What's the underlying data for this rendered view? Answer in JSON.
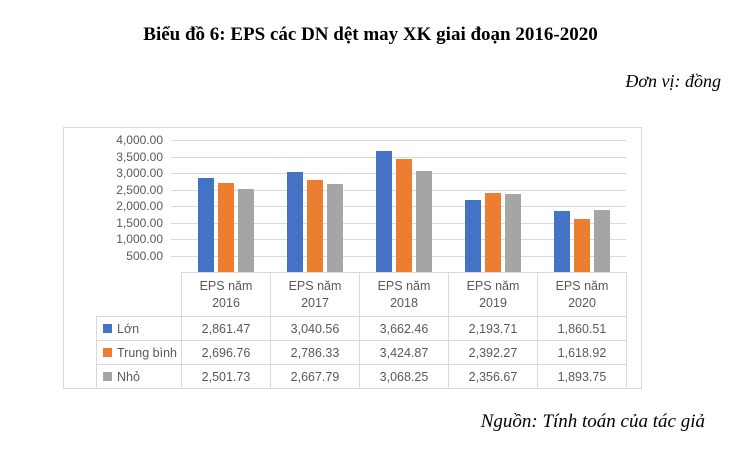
{
  "page": {
    "title": "Biểu đồ 6: EPS các DN dệt may XK giai đoạn 2016-2020",
    "unit_note": "Đơn vị: đồng",
    "source_note": "Nguồn: Tính toán của tác giả"
  },
  "chart_data": {
    "type": "bar",
    "title": "Biểu đồ 6: EPS các DN dệt may XK giai đoạn 2016-2020",
    "unit": "đồng",
    "categories": [
      "EPS năm 2016",
      "EPS năm 2017",
      "EPS năm 2018",
      "EPS năm 2019",
      "EPS năm 2020"
    ],
    "series": [
      {
        "name": "Lớn",
        "color": "#4472C4",
        "values": [
          2861.47,
          3040.56,
          3662.46,
          2193.71,
          1860.51
        ],
        "display_values": [
          "2,861.47",
          "3,040.56",
          "3,662.46",
          "2,193.71",
          "1,860.51"
        ]
      },
      {
        "name": "Trung bình",
        "color": "#ED7D31",
        "values": [
          2696.76,
          2786.33,
          3424.87,
          2392.27,
          1618.92
        ],
        "display_values": [
          "2,696.76",
          "2,786.33",
          "3,424.87",
          "2,392.27",
          "1,618.92"
        ]
      },
      {
        "name": "Nhỏ",
        "color": "#A5A5A5",
        "values": [
          2501.73,
          2667.79,
          3068.25,
          2356.67,
          1893.75
        ],
        "display_values": [
          "2,501.73",
          "2,667.79",
          "3,068.25",
          "2,356.67",
          "1,893.75"
        ]
      }
    ],
    "y_axis": {
      "min": 0,
      "max": 4000,
      "step": 500,
      "tick_labels": [
        "4,000.00",
        "3,500.00",
        "3,000.00",
        "2,500.00",
        "2,000.00",
        "1,500.00",
        "1,000.00",
        "500.00",
        "-"
      ]
    },
    "grid": true,
    "legend_position": "data-table-left",
    "gridline_color": "#d9d9d9",
    "axis_text_color": "#595959"
  }
}
